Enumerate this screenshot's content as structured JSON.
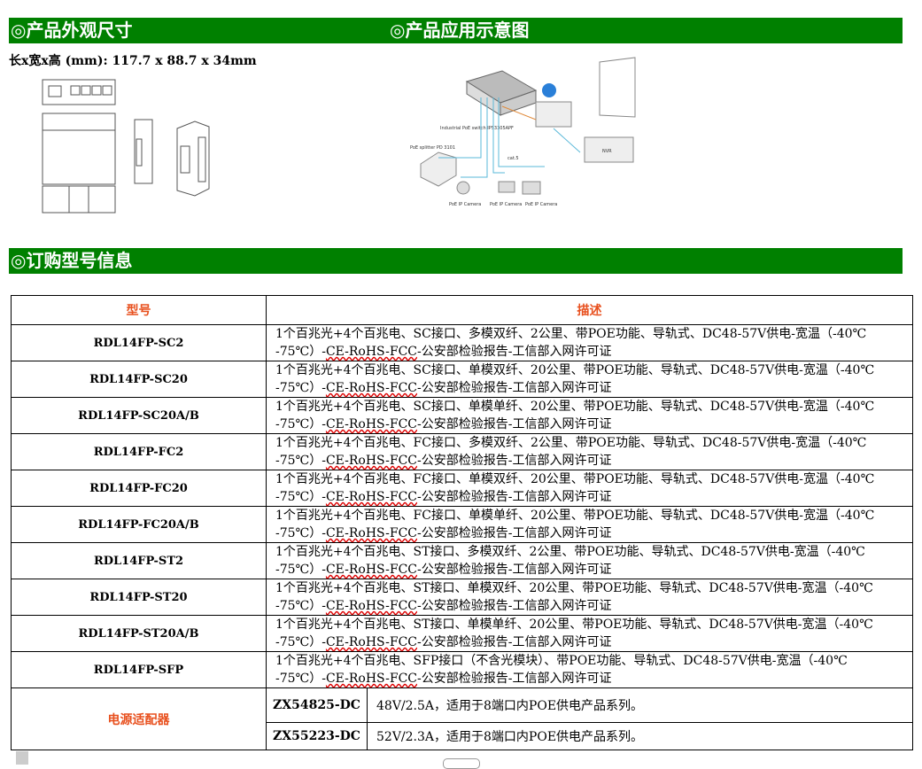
{
  "sections": {
    "appearance": "◎产品外观尺寸",
    "application": "◎产品应用示意图",
    "ordering": "◎订购型号信息"
  },
  "dimensions": "长x宽x高 (mm): 117.7 x 88.7 x 34mm",
  "diagram": {
    "switch_label": "Industrial PoE switch IPS3305APF",
    "splitter_label": "PoE splitter PD 3101",
    "cable": "cat.5",
    "nvr": "NVR",
    "camera_labels": [
      "PoE IP Camera",
      "PoE IP Camera",
      "PoE IP Camera"
    ]
  },
  "table": {
    "headers": [
      "型号",
      "描述"
    ],
    "rows": [
      {
        "model": "RDL14FP-SC2",
        "desc1": "1个百兆光+4个百兆电、SC接口、多模双纤、2公里、带POE功能、导轨式、DC48-57V供电-宽温（-40℃",
        "desc2a": "-75℃）-",
        "desc2u": "CE-RoHS-FCC",
        "desc2b": "-公安部检验报告-工信部入网许可证"
      },
      {
        "model": "RDL14FP-SC20",
        "desc1": "1个百兆光+4个百兆电、SC接口、单模双纤、20公里、带POE功能、导轨式、DC48-57V供电-宽温（-40℃",
        "desc2a": "-75℃）-",
        "desc2u": "CE-RoHS-FCC",
        "desc2b": "-公安部检验报告-工信部入网许可证"
      },
      {
        "model": "RDL14FP-SC20A/B",
        "desc1": "1个百兆光+4个百兆电、SC接口、单模单纤、20公里、带POE功能、导轨式、DC48-57V供电-宽温（-40℃",
        "desc2a": "-75℃）-",
        "desc2u": "CE-RoHS-FCC",
        "desc2b": "-公安部检验报告-工信部入网许可证"
      },
      {
        "model": "RDL14FP-FC2",
        "desc1": "1个百兆光+4个百兆电、FC接口、多模双纤、2公里、带POE功能、导轨式、DC48-57V供电-宽温（-40℃",
        "desc2a": "-75℃）-",
        "desc2u": "CE-RoHS-FCC",
        "desc2b": "-公安部检验报告-工信部入网许可证"
      },
      {
        "model": "RDL14FP-FC20",
        "desc1": "1个百兆光+4个百兆电、FC接口、单模双纤、20公里、带POE功能、导轨式、DC48-57V供电-宽温（-40℃",
        "desc2a": "-75℃）-",
        "desc2u": "CE-RoHS-FCC",
        "desc2b": "-公安部检验报告-工信部入网许可证"
      },
      {
        "model": "RDL14FP-FC20A/B",
        "desc1": "1个百兆光+4个百兆电、FC接口、单模单纤、20公里、带POE功能、导轨式、DC48-57V供电-宽温（-40℃",
        "desc2a": "-75℃）-",
        "desc2u": "CE-RoHS-FCC",
        "desc2b": "-公安部检验报告-工信部入网许可证"
      },
      {
        "model": "RDL14FP-ST2",
        "desc1": "1个百兆光+4个百兆电、ST接口、多模双纤、2公里、带POE功能、导轨式、DC48-57V供电-宽温（-40℃",
        "desc2a": "-75℃）-",
        "desc2u": "CE-RoHS-FCC",
        "desc2b": "-公安部检验报告-工信部入网许可证"
      },
      {
        "model": "RDL14FP-ST20",
        "desc1": "1个百兆光+4个百兆电、ST接口、单模双纤、20公里、带POE功能、导轨式、DC48-57V供电-宽温（-40℃",
        "desc2a": "-75℃）-",
        "desc2u": "CE-RoHS-FCC",
        "desc2b": "-公安部检验报告-工信部入网许可证"
      },
      {
        "model": "RDL14FP-ST20A/B",
        "desc1": "1个百兆光+4个百兆电、ST接口、单模单纤、20公里、带POE功能、导轨式、DC48-57V供电-宽温（-40℃",
        "desc2a": "-75℃）-",
        "desc2u": "CE-RoHS-FCC",
        "desc2b": "-公安部检验报告-工信部入网许可证"
      },
      {
        "model": "RDL14FP-SFP",
        "desc1": "1个百兆光+4个百兆电、SFP接口（不含光模块）、带POE功能、导轨式、DC48-57V供电-宽温（-40℃",
        "desc2a": "-75℃）-",
        "desc2u": "CE-RoHS-FCC",
        "desc2b": "-公安部检验报告-工信部入网许可证"
      }
    ],
    "adapter": {
      "label": "电源适配器",
      "items": [
        {
          "model": "ZX54825-DC",
          "desc": "48V/2.5A，适用于8端口内POE供电产品系列。"
        },
        {
          "model": "ZX55223-DC",
          "desc": "52V/2.3A，适用于8端口内POE供电产品系列。"
        }
      ]
    }
  },
  "colors": {
    "header_green": "#008000",
    "accent_red": "#e8501e"
  }
}
